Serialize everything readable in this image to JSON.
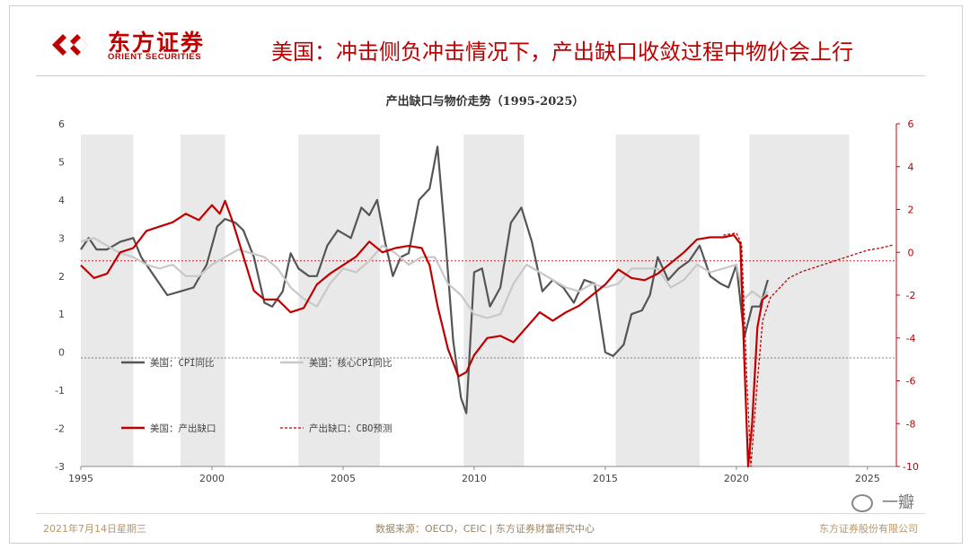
{
  "brand": {
    "name_cn": "东方证券",
    "name_en": "ORIENT SECURITIES",
    "color": "#c00000"
  },
  "headline": "美国：冲击侧负冲击情况下，产出缺口收敛过程中物价会上行",
  "footer": {
    "date": "2021年7月14日星期三",
    "source": "数据来源：OECD，CEIC | 东方证券财富研究中心",
    "company": "东方证券股份有限公司"
  },
  "watermark": "一瓣",
  "chart_data": {
    "type": "line",
    "title": "产出缺口与物价走势（1995-2025）",
    "x_ticks": [
      "1995",
      "2000",
      "2005",
      "2010",
      "2015",
      "2020",
      "2025"
    ],
    "y_left": {
      "range": [
        -3,
        6
      ],
      "ticks": [
        "6",
        "5",
        "4",
        "3",
        "2",
        "1",
        "0",
        "-1",
        "-2",
        "-3"
      ]
    },
    "y_right": {
      "range": [
        -10,
        6
      ],
      "ticks": [
        "6",
        "4",
        "2",
        "0",
        "-2",
        "-4",
        "-6",
        "-8",
        "-10"
      ]
    },
    "recession_shading": [
      [
        1995.0,
        1997.0
      ],
      [
        1998.8,
        2000.5
      ],
      [
        2003.3,
        2006.4
      ],
      [
        2009.6,
        2011.9
      ],
      [
        2015.4,
        2018.6
      ],
      [
        2020.5,
        2024.3
      ]
    ],
    "ref_lines": [
      {
        "axis": "left",
        "value": -0.15
      },
      {
        "axis": "right",
        "value": -0.4
      }
    ],
    "series": [
      {
        "name": "美国：CPI同比",
        "axis": "left",
        "color": "#555555",
        "style": "solid",
        "points": [
          [
            1995.0,
            2.7
          ],
          [
            1995.3,
            3.0
          ],
          [
            1995.6,
            2.7
          ],
          [
            1996.0,
            2.7
          ],
          [
            1996.5,
            2.9
          ],
          [
            1997.0,
            3.0
          ],
          [
            1997.3,
            2.5
          ],
          [
            1997.8,
            2.0
          ],
          [
            1998.3,
            1.5
          ],
          [
            1998.8,
            1.6
          ],
          [
            1999.3,
            1.7
          ],
          [
            1999.8,
            2.3
          ],
          [
            2000.2,
            3.3
          ],
          [
            2000.5,
            3.5
          ],
          [
            2000.9,
            3.4
          ],
          [
            2001.2,
            3.2
          ],
          [
            2001.6,
            2.5
          ],
          [
            2002.0,
            1.3
          ],
          [
            2002.3,
            1.2
          ],
          [
            2002.7,
            1.6
          ],
          [
            2003.0,
            2.6
          ],
          [
            2003.3,
            2.2
          ],
          [
            2003.7,
            2.0
          ],
          [
            2004.0,
            2.0
          ],
          [
            2004.4,
            2.8
          ],
          [
            2004.8,
            3.2
          ],
          [
            2005.3,
            3.0
          ],
          [
            2005.7,
            3.8
          ],
          [
            2006.0,
            3.6
          ],
          [
            2006.3,
            4.0
          ],
          [
            2006.6,
            2.9
          ],
          [
            2006.9,
            2.0
          ],
          [
            2007.2,
            2.5
          ],
          [
            2007.5,
            2.6
          ],
          [
            2007.9,
            4.0
          ],
          [
            2008.3,
            4.3
          ],
          [
            2008.6,
            5.4
          ],
          [
            2008.9,
            3.0
          ],
          [
            2009.2,
            0.3
          ],
          [
            2009.5,
            -1.2
          ],
          [
            2009.7,
            -1.6
          ],
          [
            2010.0,
            2.1
          ],
          [
            2010.3,
            2.2
          ],
          [
            2010.6,
            1.2
          ],
          [
            2011.0,
            1.7
          ],
          [
            2011.4,
            3.4
          ],
          [
            2011.8,
            3.8
          ],
          [
            2012.2,
            2.9
          ],
          [
            2012.6,
            1.6
          ],
          [
            2013.0,
            1.9
          ],
          [
            2013.4,
            1.7
          ],
          [
            2013.8,
            1.3
          ],
          [
            2014.2,
            1.9
          ],
          [
            2014.6,
            1.8
          ],
          [
            2015.0,
            0.0
          ],
          [
            2015.3,
            -0.1
          ],
          [
            2015.7,
            0.2
          ],
          [
            2016.0,
            1.0
          ],
          [
            2016.4,
            1.1
          ],
          [
            2016.7,
            1.5
          ],
          [
            2017.0,
            2.5
          ],
          [
            2017.4,
            1.9
          ],
          [
            2017.8,
            2.2
          ],
          [
            2018.2,
            2.4
          ],
          [
            2018.6,
            2.8
          ],
          [
            2019.0,
            2.0
          ],
          [
            2019.4,
            1.8
          ],
          [
            2019.7,
            1.7
          ],
          [
            2020.0,
            2.3
          ],
          [
            2020.3,
            0.4
          ],
          [
            2020.6,
            1.2
          ],
          [
            2020.9,
            1.2
          ],
          [
            2021.2,
            1.9
          ]
        ]
      },
      {
        "name": "美国：核心CPI同比",
        "axis": "left",
        "color": "#c8c8c8",
        "style": "solid",
        "points": [
          [
            1995.0,
            2.9
          ],
          [
            1995.5,
            3.0
          ],
          [
            1996.0,
            2.8
          ],
          [
            1996.5,
            2.6
          ],
          [
            1997.0,
            2.5
          ],
          [
            1997.5,
            2.3
          ],
          [
            1998.0,
            2.2
          ],
          [
            1998.5,
            2.3
          ],
          [
            1999.0,
            2.0
          ],
          [
            1999.5,
            2.0
          ],
          [
            2000.0,
            2.3
          ],
          [
            2000.5,
            2.5
          ],
          [
            2001.0,
            2.7
          ],
          [
            2001.5,
            2.6
          ],
          [
            2002.0,
            2.5
          ],
          [
            2002.5,
            2.2
          ],
          [
            2003.0,
            1.7
          ],
          [
            2003.5,
            1.4
          ],
          [
            2004.0,
            1.2
          ],
          [
            2004.5,
            1.8
          ],
          [
            2005.0,
            2.2
          ],
          [
            2005.5,
            2.1
          ],
          [
            2006.0,
            2.4
          ],
          [
            2006.5,
            2.8
          ],
          [
            2007.0,
            2.6
          ],
          [
            2007.5,
            2.3
          ],
          [
            2008.0,
            2.5
          ],
          [
            2008.5,
            2.5
          ],
          [
            2009.0,
            1.8
          ],
          [
            2009.5,
            1.5
          ],
          [
            2010.0,
            1.0
          ],
          [
            2010.5,
            0.9
          ],
          [
            2011.0,
            1.0
          ],
          [
            2011.5,
            1.8
          ],
          [
            2012.0,
            2.3
          ],
          [
            2012.5,
            2.1
          ],
          [
            2013.0,
            1.9
          ],
          [
            2013.5,
            1.7
          ],
          [
            2014.0,
            1.6
          ],
          [
            2014.5,
            1.8
          ],
          [
            2015.0,
            1.7
          ],
          [
            2015.5,
            1.8
          ],
          [
            2016.0,
            2.2
          ],
          [
            2016.5,
            2.2
          ],
          [
            2017.0,
            2.2
          ],
          [
            2017.5,
            1.7
          ],
          [
            2018.0,
            1.9
          ],
          [
            2018.5,
            2.3
          ],
          [
            2019.0,
            2.1
          ],
          [
            2019.5,
            2.2
          ],
          [
            2020.0,
            2.3
          ],
          [
            2020.3,
            1.4
          ],
          [
            2020.6,
            1.6
          ],
          [
            2021.0,
            1.4
          ],
          [
            2021.2,
            1.6
          ]
        ]
      },
      {
        "name": "美国：产出缺口",
        "axis": "right",
        "color": "#c00000",
        "style": "solid",
        "points": [
          [
            1995.0,
            -0.6
          ],
          [
            1995.5,
            -1.2
          ],
          [
            1996.0,
            -1.0
          ],
          [
            1996.5,
            0.0
          ],
          [
            1997.0,
            0.2
          ],
          [
            1997.5,
            1.0
          ],
          [
            1998.0,
            1.2
          ],
          [
            1998.5,
            1.4
          ],
          [
            1999.0,
            1.8
          ],
          [
            1999.5,
            1.5
          ],
          [
            2000.0,
            2.2
          ],
          [
            2000.3,
            1.8
          ],
          [
            2000.5,
            2.4
          ],
          [
            2000.8,
            1.4
          ],
          [
            2001.2,
            -0.2
          ],
          [
            2001.6,
            -1.8
          ],
          [
            2002.0,
            -2.2
          ],
          [
            2002.5,
            -2.2
          ],
          [
            2003.0,
            -2.8
          ],
          [
            2003.5,
            -2.6
          ],
          [
            2004.0,
            -1.5
          ],
          [
            2004.5,
            -1.0
          ],
          [
            2005.0,
            -0.6
          ],
          [
            2005.5,
            -0.2
          ],
          [
            2006.0,
            0.5
          ],
          [
            2006.5,
            0.0
          ],
          [
            2007.0,
            0.2
          ],
          [
            2007.5,
            0.3
          ],
          [
            2008.0,
            0.2
          ],
          [
            2008.3,
            -0.6
          ],
          [
            2008.6,
            -2.5
          ],
          [
            2009.0,
            -4.5
          ],
          [
            2009.4,
            -5.8
          ],
          [
            2009.7,
            -5.6
          ],
          [
            2010.0,
            -4.8
          ],
          [
            2010.5,
            -4.0
          ],
          [
            2011.0,
            -3.9
          ],
          [
            2011.5,
            -4.2
          ],
          [
            2012.0,
            -3.5
          ],
          [
            2012.5,
            -2.8
          ],
          [
            2013.0,
            -3.2
          ],
          [
            2013.5,
            -2.8
          ],
          [
            2014.0,
            -2.5
          ],
          [
            2014.5,
            -2.0
          ],
          [
            2015.0,
            -1.5
          ],
          [
            2015.5,
            -0.8
          ],
          [
            2016.0,
            -1.2
          ],
          [
            2016.5,
            -1.3
          ],
          [
            2017.0,
            -1.0
          ],
          [
            2017.5,
            -0.5
          ],
          [
            2018.0,
            0.0
          ],
          [
            2018.5,
            0.6
          ],
          [
            2019.0,
            0.7
          ],
          [
            2019.5,
            0.7
          ],
          [
            2019.9,
            0.8
          ],
          [
            2020.15,
            0.4
          ],
          [
            2020.3,
            -5.0
          ],
          [
            2020.45,
            -10.0
          ],
          [
            2020.6,
            -8.0
          ],
          [
            2020.8,
            -3.5
          ],
          [
            2021.0,
            -2.2
          ],
          [
            2021.2,
            -2.0
          ]
        ]
      },
      {
        "name": "产出缺口：CBO预测",
        "axis": "right",
        "color": "#c00000",
        "style": "dashed",
        "points": [
          [
            2019.5,
            0.8
          ],
          [
            2020.0,
            0.9
          ],
          [
            2020.2,
            0.4
          ],
          [
            2020.4,
            -6.0
          ],
          [
            2020.55,
            -10.0
          ],
          [
            2020.8,
            -6.0
          ],
          [
            2021.0,
            -3.2
          ],
          [
            2021.3,
            -2.1
          ],
          [
            2021.7,
            -1.6
          ],
          [
            2022.0,
            -1.2
          ],
          [
            2022.5,
            -0.9
          ],
          [
            2023.0,
            -0.7
          ],
          [
            2023.5,
            -0.5
          ],
          [
            2024.0,
            -0.3
          ],
          [
            2024.5,
            -0.1
          ],
          [
            2025.0,
            0.1
          ],
          [
            2025.5,
            0.2
          ],
          [
            2026.0,
            0.35
          ]
        ]
      }
    ]
  }
}
